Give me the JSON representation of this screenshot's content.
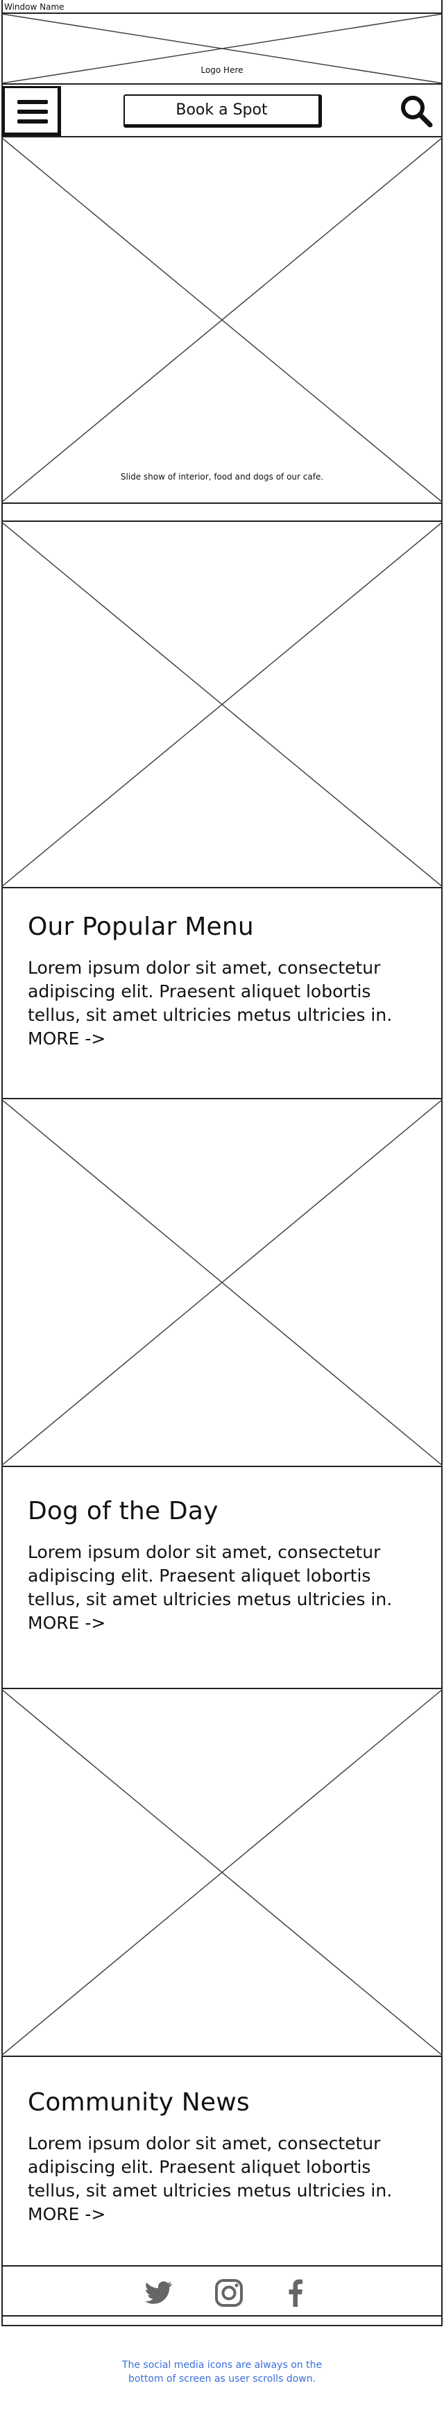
{
  "window": {
    "title": "Window Name"
  },
  "header": {
    "logo_text": "Logo Here"
  },
  "navbar": {
    "menu_icon": "hamburger-menu-icon",
    "book_label": "Book a Spot",
    "search_icon": "search-icon"
  },
  "slideshow": {
    "caption": "Slide show of interior, food and dogs of our cafe."
  },
  "sections": [
    {
      "title": "Our Popular Menu",
      "body": "Lorem ipsum dolor sit amet, consectetur adipiscing elit. Praesent aliquet lobortis tellus, sit amet ultricies metus ultricies in.",
      "more": "MORE ->"
    },
    {
      "title": "Dog of the Day",
      "body": "Lorem ipsum dolor sit amet, consectetur adipiscing elit. Praesent aliquet lobortis tellus, sit amet ultricies metus ultricies in.",
      "more": "MORE ->"
    },
    {
      "title": "Community News",
      "body": "Lorem ipsum dolor sit amet, consectetur adipiscing elit. Praesent aliquet lobortis tellus, sit amet ultricies metus ultricies in.",
      "more": "MORE ->"
    }
  ],
  "footer": {
    "icons": [
      "twitter-icon",
      "instagram-icon",
      "facebook-icon"
    ]
  },
  "annotation": {
    "line1": "The social media icons are always on the",
    "line2": "bottom of screen as user scrolls down."
  },
  "colors": {
    "annotation": "#3a6fd8",
    "wire": "#222222"
  }
}
